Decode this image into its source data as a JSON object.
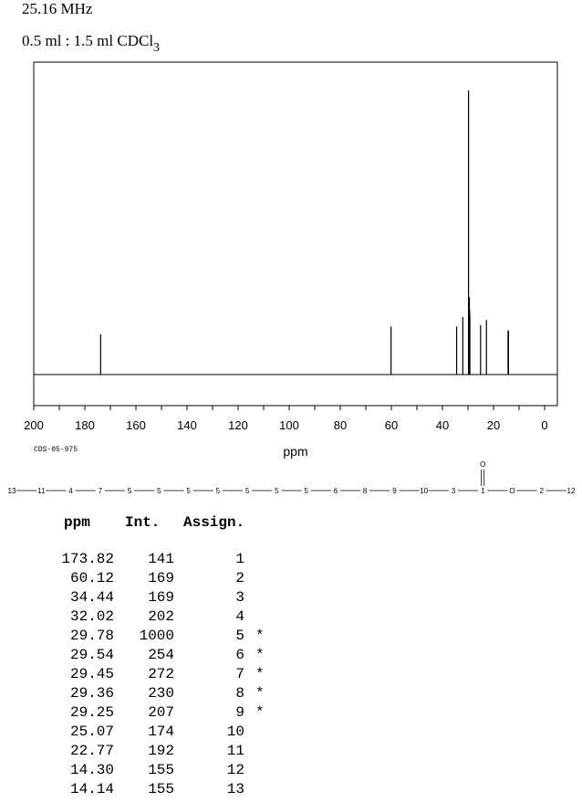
{
  "header": {
    "frequency": "25.16 MHz",
    "solvent_prefix": "0.5 ml : 1.5 ml CDCl",
    "solvent_subscript": "3"
  },
  "spectrum_code": "CDS-05-975",
  "structure_chain": [
    "13",
    "11",
    "4",
    "7",
    "5",
    "5",
    "5",
    "5",
    "5",
    "5",
    "5",
    "6",
    "8",
    "9",
    "10",
    "3",
    "1",
    "O",
    "2",
    "12"
  ],
  "structure_carbonyl_label": "O",
  "colors": {
    "line": "#000000",
    "background": "#ffffff"
  },
  "chart_data": {
    "type": "line",
    "xlabel": "ppm",
    "x_reversed": true,
    "xlim": [
      200,
      -5
    ],
    "x_ticks": [
      200,
      180,
      160,
      140,
      120,
      100,
      80,
      60,
      40,
      20,
      0
    ],
    "x_minor_step": 10,
    "ylim": [
      0,
      1000
    ],
    "grid": false,
    "peaks": [
      {
        "ppm": 173.82,
        "int": 141
      },
      {
        "ppm": 60.12,
        "int": 169
      },
      {
        "ppm": 34.44,
        "int": 169
      },
      {
        "ppm": 32.02,
        "int": 202
      },
      {
        "ppm": 29.78,
        "int": 1000
      },
      {
        "ppm": 29.54,
        "int": 254
      },
      {
        "ppm": 29.45,
        "int": 272
      },
      {
        "ppm": 29.36,
        "int": 230
      },
      {
        "ppm": 29.25,
        "int": 207
      },
      {
        "ppm": 25.07,
        "int": 174
      },
      {
        "ppm": 22.77,
        "int": 192
      },
      {
        "ppm": 14.3,
        "int": 155
      },
      {
        "ppm": 14.14,
        "int": 155
      }
    ]
  },
  "table": {
    "headers": [
      "ppm",
      "Int.",
      "Assign."
    ],
    "rows": [
      {
        "ppm": "173.82",
        "int": "141",
        "assign": "1",
        "mark": ""
      },
      {
        "ppm": "60.12",
        "int": "169",
        "assign": "2",
        "mark": ""
      },
      {
        "ppm": "34.44",
        "int": "169",
        "assign": "3",
        "mark": ""
      },
      {
        "ppm": "32.02",
        "int": "202",
        "assign": "4",
        "mark": ""
      },
      {
        "ppm": "29.78",
        "int": "1000",
        "assign": "5",
        "mark": "*"
      },
      {
        "ppm": "29.54",
        "int": "254",
        "assign": "6",
        "mark": "*"
      },
      {
        "ppm": "29.45",
        "int": "272",
        "assign": "7",
        "mark": "*"
      },
      {
        "ppm": "29.36",
        "int": "230",
        "assign": "8",
        "mark": "*"
      },
      {
        "ppm": "29.25",
        "int": "207",
        "assign": "9",
        "mark": "*"
      },
      {
        "ppm": "25.07",
        "int": "174",
        "assign": "10",
        "mark": ""
      },
      {
        "ppm": "22.77",
        "int": "192",
        "assign": "11",
        "mark": ""
      },
      {
        "ppm": "14.30",
        "int": "155",
        "assign": "12",
        "mark": ""
      },
      {
        "ppm": "14.14",
        "int": "155",
        "assign": "13",
        "mark": ""
      }
    ]
  }
}
